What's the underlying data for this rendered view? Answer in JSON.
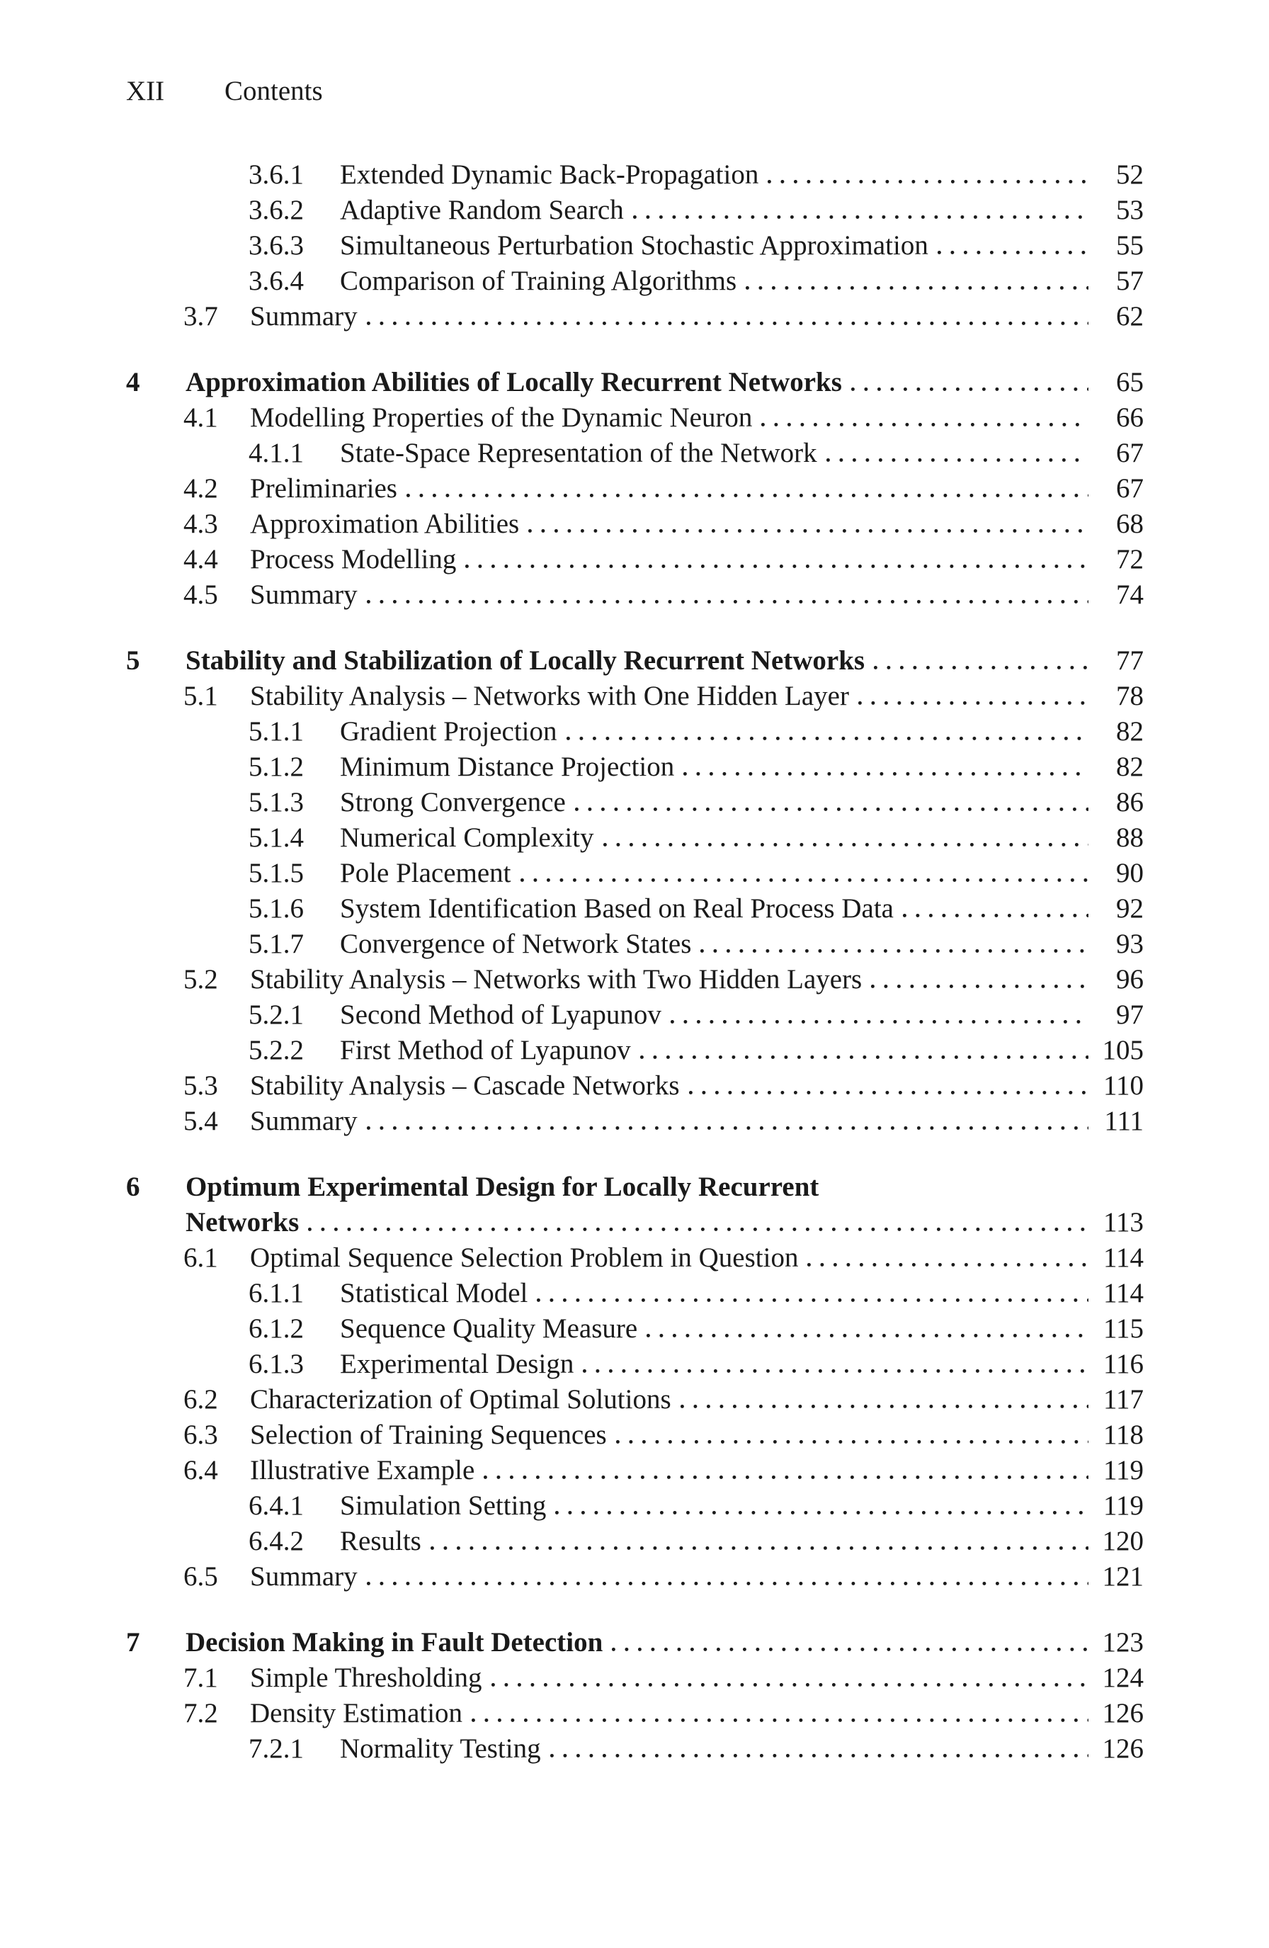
{
  "header": {
    "folio": "XII",
    "running_title": "Contents"
  },
  "toc": {
    "text_color": "#1a1a1a",
    "entries": [
      {
        "level": "subsection",
        "number": "3.6.1",
        "title": "Extended Dynamic Back-Propagation",
        "page": "52"
      },
      {
        "level": "subsection",
        "number": "3.6.2",
        "title": "Adaptive Random Search",
        "page": "53"
      },
      {
        "level": "subsection",
        "number": "3.6.3",
        "title": "Simultaneous Perturbation Stochastic Approximation",
        "page": "55"
      },
      {
        "level": "subsection",
        "number": "3.6.4",
        "title": "Comparison of Training Algorithms",
        "page": "57"
      },
      {
        "level": "section",
        "number": "3.7",
        "title": "Summary",
        "page": "62"
      },
      {
        "level": "chapter",
        "number": "4",
        "title": "Approximation Abilities of Locally Recurrent Networks",
        "page": "65"
      },
      {
        "level": "section",
        "number": "4.1",
        "title": "Modelling Properties of the Dynamic Neuron",
        "page": "66"
      },
      {
        "level": "subsection",
        "number": "4.1.1",
        "title": "State-Space Representation of the Network",
        "page": "67"
      },
      {
        "level": "section",
        "number": "4.2",
        "title": "Preliminaries",
        "page": "67"
      },
      {
        "level": "section",
        "number": "4.3",
        "title": "Approximation Abilities",
        "page": "68"
      },
      {
        "level": "section",
        "number": "4.4",
        "title": "Process Modelling",
        "page": "72"
      },
      {
        "level": "section",
        "number": "4.5",
        "title": "Summary",
        "page": "74"
      },
      {
        "level": "chapter",
        "number": "5",
        "title": "Stability and Stabilization of Locally Recurrent Networks",
        "page": "77"
      },
      {
        "level": "section",
        "number": "5.1",
        "title": "Stability Analysis – Networks with One Hidden Layer",
        "page": "78"
      },
      {
        "level": "subsection",
        "number": "5.1.1",
        "title": "Gradient Projection",
        "page": "82"
      },
      {
        "level": "subsection",
        "number": "5.1.2",
        "title": "Minimum Distance Projection",
        "page": "82"
      },
      {
        "level": "subsection",
        "number": "5.1.3",
        "title": "Strong Convergence",
        "page": "86"
      },
      {
        "level": "subsection",
        "number": "5.1.4",
        "title": "Numerical Complexity",
        "page": "88"
      },
      {
        "level": "subsection",
        "number": "5.1.5",
        "title": "Pole Placement",
        "page": "90"
      },
      {
        "level": "subsection",
        "number": "5.1.6",
        "title": "System Identification Based on Real Process Data",
        "page": "92"
      },
      {
        "level": "subsection",
        "number": "5.1.7",
        "title": "Convergence of Network States",
        "page": "93"
      },
      {
        "level": "section",
        "number": "5.2",
        "title": "Stability Analysis – Networks with Two Hidden Layers",
        "page": "96"
      },
      {
        "level": "subsection",
        "number": "5.2.1",
        "title": "Second Method of Lyapunov",
        "page": "97"
      },
      {
        "level": "subsection",
        "number": "5.2.2",
        "title": "First Method of Lyapunov",
        "page": "105"
      },
      {
        "level": "section",
        "number": "5.3",
        "title": "Stability Analysis – Cascade Networks",
        "page": "110"
      },
      {
        "level": "section",
        "number": "5.4",
        "title": "Summary",
        "page": "111"
      },
      {
        "level": "chapter",
        "number": "6",
        "title_line1": "Optimum Experimental Design for Locally Recurrent",
        "title": "Networks",
        "page": "113"
      },
      {
        "level": "section",
        "number": "6.1",
        "title": "Optimal Sequence Selection Problem in Question",
        "page": "114"
      },
      {
        "level": "subsection",
        "number": "6.1.1",
        "title": "Statistical Model",
        "page": "114"
      },
      {
        "level": "subsection",
        "number": "6.1.2",
        "title": "Sequence Quality Measure",
        "page": "115"
      },
      {
        "level": "subsection",
        "number": "6.1.3",
        "title": "Experimental Design",
        "page": "116"
      },
      {
        "level": "section",
        "number": "6.2",
        "title": "Characterization of Optimal Solutions",
        "page": "117"
      },
      {
        "level": "section",
        "number": "6.3",
        "title": "Selection of Training Sequences",
        "page": "118"
      },
      {
        "level": "section",
        "number": "6.4",
        "title": "Illustrative Example",
        "page": "119"
      },
      {
        "level": "subsection",
        "number": "6.4.1",
        "title": "Simulation Setting",
        "page": "119"
      },
      {
        "level": "subsection",
        "number": "6.4.2",
        "title": "Results",
        "page": "120"
      },
      {
        "level": "section",
        "number": "6.5",
        "title": "Summary",
        "page": "121"
      },
      {
        "level": "chapter",
        "number": "7",
        "title": "Decision Making in Fault Detection",
        "page": "123"
      },
      {
        "level": "section",
        "number": "7.1",
        "title": "Simple Thresholding",
        "page": "124"
      },
      {
        "level": "section",
        "number": "7.2",
        "title": "Density Estimation",
        "page": "126"
      },
      {
        "level": "subsection",
        "number": "7.2.1",
        "title": "Normality Testing",
        "page": "126"
      }
    ]
  }
}
